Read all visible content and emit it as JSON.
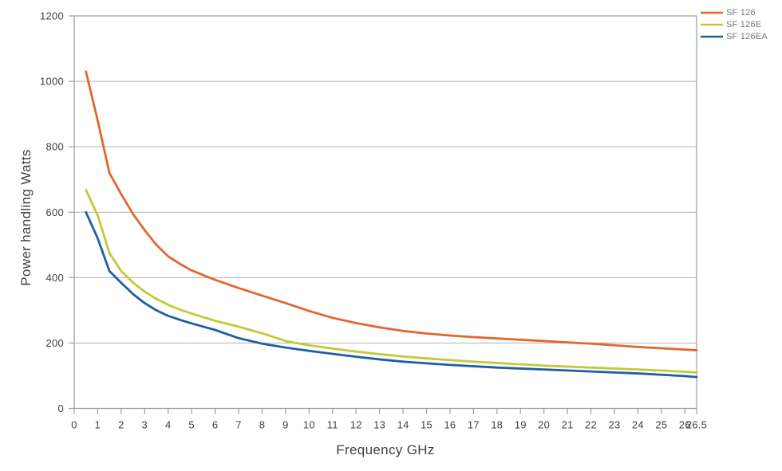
{
  "chart_data": {
    "type": "line",
    "title": "",
    "xlabel": "Frequency GHz",
    "ylabel": "Power handling Watts",
    "xlim": [
      0,
      26.5
    ],
    "ylim": [
      0,
      1200
    ],
    "x_ticks": [
      0,
      1,
      2,
      3,
      4,
      5,
      6,
      7,
      8,
      9,
      10,
      11,
      12,
      13,
      14,
      15,
      16,
      17,
      18,
      19,
      20,
      21,
      22,
      23,
      24,
      25,
      26,
      26.5
    ],
    "x_tick_labels": [
      "0",
      "1",
      "2",
      "3",
      "4",
      "5",
      "6",
      "7",
      "8",
      "9",
      "10",
      "11",
      "12",
      "13",
      "14",
      "15",
      "16",
      "17",
      "18",
      "19",
      "20",
      "21",
      "22",
      "23",
      "24",
      "25",
      "26",
      "26.5"
    ],
    "y_ticks": [
      0,
      200,
      400,
      600,
      800,
      1000,
      1200
    ],
    "y_tick_labels": [
      "0",
      "200",
      "400",
      "600",
      "800",
      "1000",
      "1200"
    ],
    "grid": "horizontal-only",
    "legend_position": "top-right-outside",
    "x": [
      0.5,
      1,
      1.5,
      2,
      2.5,
      3,
      3.5,
      4,
      4.5,
      5,
      6,
      7,
      8,
      9,
      10,
      11,
      12,
      13,
      14,
      15,
      16,
      17,
      18,
      19,
      20,
      21,
      22,
      23,
      24,
      25,
      26,
      26.5
    ],
    "series": [
      {
        "name": "SF 126",
        "color": "#E2662D",
        "values": [
          1030,
          880,
          720,
          655,
          595,
          545,
          500,
          465,
          442,
          422,
          393,
          368,
          345,
          322,
          298,
          277,
          261,
          248,
          237,
          229,
          223,
          218,
          214,
          210,
          206,
          202,
          198,
          193,
          188,
          184,
          180,
          178
        ]
      },
      {
        "name": "SF 126E",
        "color": "#C2CA39",
        "values": [
          668,
          590,
          475,
          420,
          385,
          357,
          335,
          317,
          302,
          290,
          268,
          250,
          230,
          206,
          193,
          183,
          174,
          166,
          159,
          153,
          148,
          143,
          139,
          135,
          131,
          128,
          125,
          122,
          119,
          116,
          112,
          110
        ]
      },
      {
        "name": "SF 126EA",
        "color": "#1E5EA5",
        "values": [
          600,
          520,
          420,
          384,
          350,
          322,
          300,
          283,
          271,
          260,
          240,
          215,
          198,
          186,
          176,
          167,
          158,
          150,
          143,
          138,
          133,
          129,
          125,
          122,
          119,
          116,
          113,
          110,
          107,
          103,
          99,
          96
        ]
      }
    ]
  },
  "colors": {
    "background": "#ffffff",
    "plot_border": "#9c9da0",
    "gridline": "#b0b1b3",
    "tick_text": "#414144",
    "axis_title_text": "#3f3f42",
    "legend_text": "#76777a"
  }
}
